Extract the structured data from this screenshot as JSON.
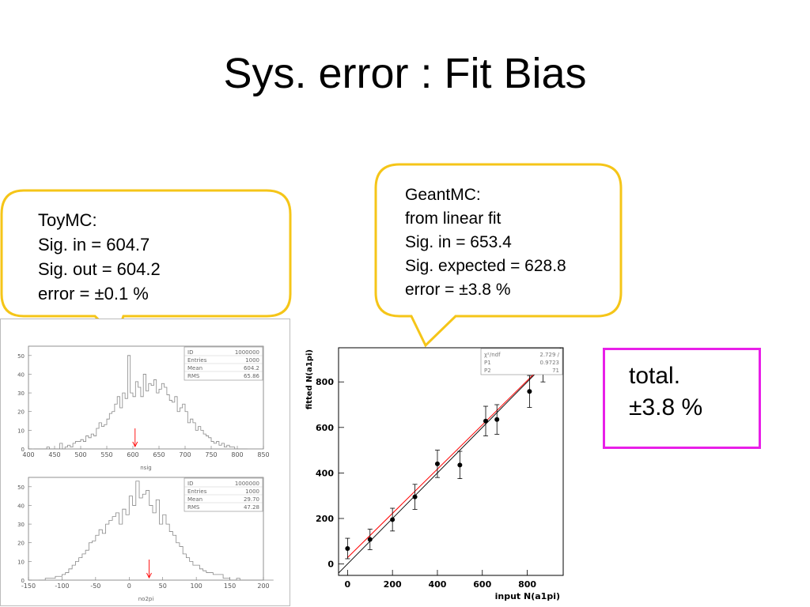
{
  "slide": {
    "title": "Sys. error : Fit Bias"
  },
  "toymc_callout": {
    "lines": [
      "ToyMC:",
      "Sig. in = 604.7",
      "Sig. out = 604.2",
      "error = ±0.1 %"
    ]
  },
  "geantmc_callout": {
    "lines": [
      "GeantMC:",
      "from linear fit",
      "Sig. in = 653.4",
      "Sig. expected = 628.8",
      "error = ±3.8 %"
    ]
  },
  "total_box": {
    "lines": [
      "total.",
      "±3.8 %"
    ],
    "border_color": "#e81fe8"
  },
  "colors": {
    "callout_border": "#f5c518",
    "fit_line": "#ff0000",
    "marker": "#ff0000"
  },
  "chart_data": [
    {
      "type": "histogram",
      "xlabel": "nsig",
      "ylabel": "",
      "xlim": [
        400,
        850
      ],
      "ylim": [
        0,
        55
      ],
      "xticks": [
        400,
        450,
        500,
        550,
        600,
        650,
        700,
        750,
        800,
        850
      ],
      "yticks": [
        0,
        10,
        20,
        30,
        40,
        50
      ],
      "marker_x": 604.2,
      "stats": [
        {
          "label": "ID",
          "value": "1000000"
        },
        {
          "label": "Entries",
          "value": "1000"
        },
        {
          "label": "Mean",
          "value": "604.2"
        },
        {
          "label": "RMS",
          "value": "65.86"
        }
      ],
      "bin_width": 5,
      "x_start": 410,
      "values": [
        0,
        0,
        0,
        0,
        0,
        1,
        0,
        0,
        0,
        0,
        3,
        0,
        1,
        2,
        1,
        3,
        4,
        4,
        5,
        4,
        7,
        6,
        8,
        7,
        11,
        14,
        12,
        13,
        16,
        19,
        20,
        24,
        28,
        22,
        30,
        27,
        50,
        30,
        28,
        36,
        33,
        28,
        40,
        31,
        35,
        34,
        37,
        30,
        32,
        35,
        33,
        29,
        26,
        25,
        28,
        20,
        22,
        24,
        20,
        14,
        16,
        14,
        10,
        12,
        10,
        8,
        7,
        6,
        4,
        3,
        4,
        2,
        3,
        1,
        2,
        1,
        1,
        0,
        0,
        0,
        0,
        0
      ]
    },
    {
      "type": "histogram",
      "xlabel": "no2pi",
      "ylabel": "",
      "xlim": [
        -150,
        200
      ],
      "ylim": [
        0,
        55
      ],
      "xticks": [
        -150,
        -100,
        -50,
        0,
        50,
        100,
        150,
        200
      ],
      "yticks": [
        0,
        10,
        20,
        30,
        40,
        50
      ],
      "marker_x": 29.7,
      "stats": [
        {
          "label": "ID",
          "value": "1000000"
        },
        {
          "label": "Entries",
          "value": "1000"
        },
        {
          "label": "Mean",
          "value": "29.70"
        },
        {
          "label": "RMS",
          "value": "47.28"
        }
      ],
      "bin_width": 5,
      "x_start": -135,
      "values": [
        0,
        0,
        1,
        1,
        1,
        2,
        2,
        3,
        4,
        6,
        8,
        10,
        12,
        14,
        16,
        20,
        21,
        24,
        27,
        25,
        30,
        32,
        34,
        36,
        30,
        38,
        35,
        45,
        40,
        53,
        44,
        46,
        48,
        40,
        36,
        43,
        30,
        35,
        30,
        26,
        24,
        20,
        18,
        14,
        12,
        10,
        8,
        8,
        6,
        5,
        4,
        4,
        3,
        3,
        3,
        1,
        1,
        0,
        0,
        1,
        0,
        0,
        0,
        0,
        0,
        0,
        0,
        0,
        0,
        0
      ]
    },
    {
      "type": "scatter",
      "xlabel": "input N(a1pi)",
      "ylabel": "fitted N(a1pi)",
      "xlim": [
        -40,
        960
      ],
      "ylim": [
        -50,
        950
      ],
      "xticks": [
        0,
        200,
        400,
        600,
        800
      ],
      "yticks": [
        0,
        200,
        400,
        600,
        800
      ],
      "stats": [
        {
          "label": "χ²/ndf",
          "value": "2.729  /"
        },
        {
          "label": "P1",
          "value": "0.9723"
        },
        {
          "label": "P2",
          "value": "71"
        }
      ],
      "points": [
        {
          "x": 0,
          "y": 68,
          "err": 45
        },
        {
          "x": 100,
          "y": 108,
          "err": 45
        },
        {
          "x": 200,
          "y": 195,
          "err": 50
        },
        {
          "x": 300,
          "y": 295,
          "err": 55
        },
        {
          "x": 400,
          "y": 440,
          "err": 60
        },
        {
          "x": 500,
          "y": 435,
          "err": 60
        },
        {
          "x": 615,
          "y": 628,
          "err": 65
        },
        {
          "x": 665,
          "y": 635,
          "err": 65
        },
        {
          "x": 810,
          "y": 758,
          "err": 70
        },
        {
          "x": 870,
          "y": 870,
          "err": 70
        }
      ],
      "fit": {
        "intercept": 28,
        "slope": 0.9723
      },
      "diagonal": {
        "slope": 1,
        "intercept": 0
      }
    }
  ]
}
